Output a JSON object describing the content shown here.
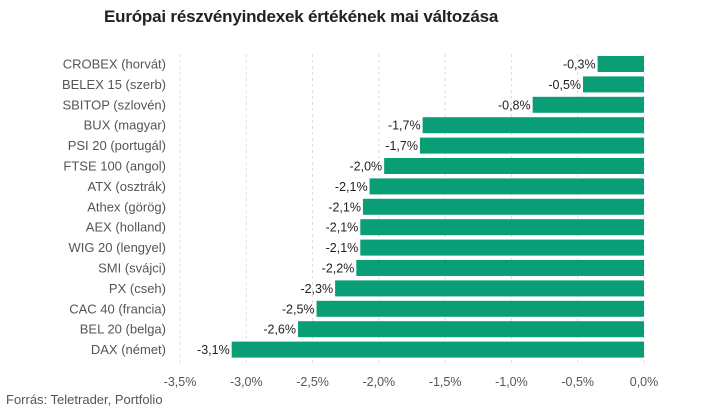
{
  "source": "Forrás: Teletrader, Portfolio",
  "chart_data": {
    "type": "bar",
    "orientation": "horizontal",
    "title": "Európai részvényindexek értékének mai változása",
    "xlabel": "",
    "ylabel": "",
    "xlim": [
      -3.5,
      0
    ],
    "grid": true,
    "legend": "none",
    "bar_color": "#0a9e76",
    "categories": [
      "CROBEX (horvát)",
      "BELEX 15 (szerb)",
      "SBITOP (szlovén)",
      "BUX (magyar)",
      "PSI 20 (portugál)",
      "FTSE 100 (angol)",
      "ATX (osztrák)",
      "Athex (görög)",
      "AEX (holland)",
      "WIG 20 (lengyel)",
      "SMI (svájci)",
      "PX (cseh)",
      "CAC 40 (francia)",
      "BEL 20 (belga)",
      "DAX (német)"
    ],
    "values": [
      -0.35,
      -0.46,
      -0.84,
      -1.67,
      -1.69,
      -1.96,
      -2.07,
      -2.12,
      -2.14,
      -2.14,
      -2.17,
      -2.33,
      -2.47,
      -2.61,
      -3.11
    ],
    "value_labels": [
      "-0,3%",
      "-0,5%",
      "-0,8%",
      "-1,7%",
      "-1,7%",
      "-2,0%",
      "-2,1%",
      "-2,1%",
      "-2,1%",
      "-2,1%",
      "-2,2%",
      "-2,3%",
      "-2,5%",
      "-2,6%",
      "-3,1%"
    ],
    "ticks": [
      -3.5,
      -3.0,
      -2.5,
      -2.0,
      -1.5,
      -1.0,
      -0.5,
      0.0
    ],
    "tick_labels": [
      "-3,5%",
      "-3,0%",
      "-2,5%",
      "-2,0%",
      "-1,5%",
      "-1,0%",
      "-0,5%",
      "0,0%"
    ]
  }
}
